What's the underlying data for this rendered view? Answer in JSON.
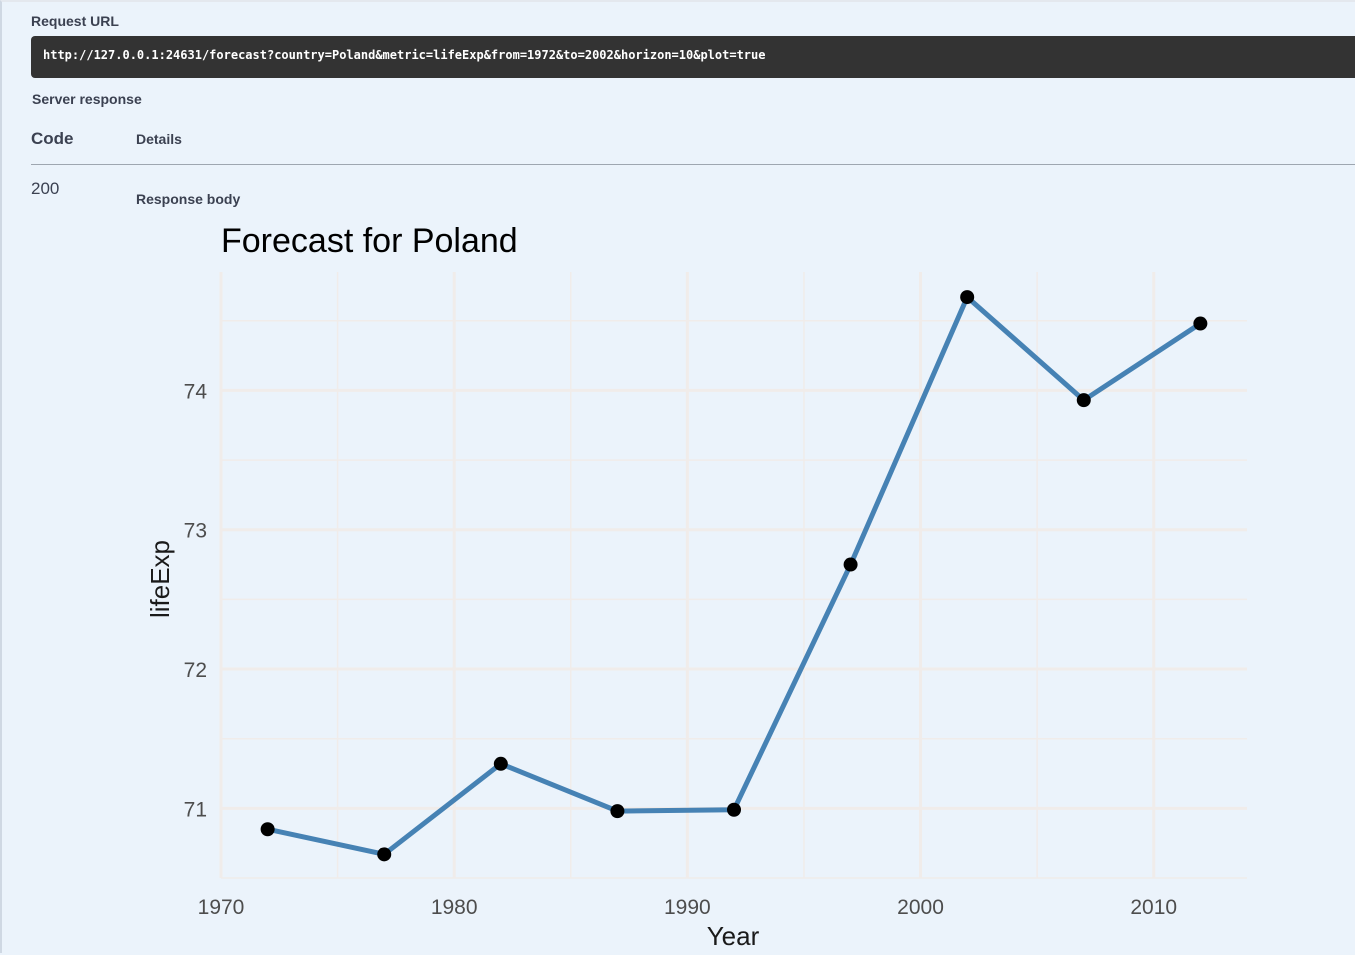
{
  "request": {
    "label": "Request URL",
    "url": "http://127.0.0.1:24631/forecast?country=Poland&metric=lifeExp&from=1972&to=2002&horizon=10&plot=true"
  },
  "server_response": {
    "label": "Server response",
    "columns": {
      "code": "Code",
      "details": "Details"
    },
    "status_code": "200",
    "response_body_label": "Response body"
  },
  "colors": {
    "background": "#ebf3fb",
    "url_box": "#333333",
    "line": "#4682b4",
    "point": "#000000",
    "grid": "#f0ecea"
  },
  "chart_data": {
    "type": "line",
    "title": "Forecast for Poland",
    "xlabel": "Year",
    "ylabel": "lifeExp",
    "x": [
      1972,
      1977,
      1982,
      1987,
      1992,
      1997,
      2002,
      2007,
      2012
    ],
    "y": [
      70.85,
      70.67,
      71.32,
      70.98,
      70.99,
      72.75,
      74.67,
      73.93,
      74.48
    ],
    "x_ticks": [
      1970,
      1980,
      1990,
      2000,
      2010
    ],
    "y_ticks": [
      71,
      72,
      73,
      74
    ],
    "xlim": [
      1970,
      2014
    ],
    "ylim": [
      70.5,
      74.85
    ],
    "grid": true,
    "markers": true
  }
}
